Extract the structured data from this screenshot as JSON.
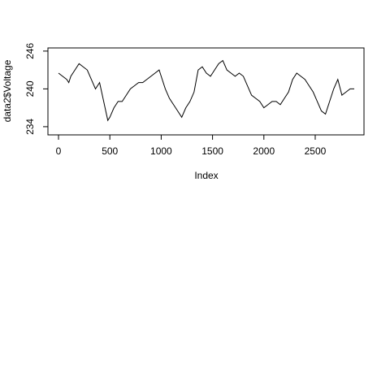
{
  "chart_data": {
    "type": "line",
    "x_label": "Index",
    "y_label": "data2$Voltage",
    "x": [
      0,
      40,
      80,
      100,
      120,
      160,
      200,
      240,
      280,
      320,
      360,
      400,
      440,
      480,
      500,
      540,
      580,
      620,
      660,
      700,
      740,
      780,
      820,
      860,
      900,
      940,
      980,
      1000,
      1040,
      1080,
      1120,
      1160,
      1200,
      1240,
      1280,
      1320,
      1360,
      1400,
      1440,
      1480,
      1520,
      1560,
      1600,
      1640,
      1680,
      1720,
      1760,
      1800,
      1840,
      1880,
      1920,
      1960,
      2000,
      2040,
      2080,
      2120,
      2160,
      2200,
      2240,
      2280,
      2320,
      2360,
      2400,
      2440,
      2480,
      2520,
      2560,
      2600,
      2640,
      2680,
      2720,
      2760,
      2800,
      2840,
      2880
    ],
    "series": [
      {
        "color": "#000000",
        "values": [
          242.5,
          242,
          241.5,
          241,
          242,
          243,
          244,
          243.5,
          243,
          241.5,
          240,
          241,
          238,
          235,
          235.5,
          237,
          238,
          238,
          239,
          240,
          240.5,
          241,
          241,
          241.5,
          242,
          242.5,
          243,
          242,
          240,
          238.5,
          237.5,
          236.5,
          235.5,
          237,
          238,
          239.5,
          243,
          243.5,
          242.5,
          242,
          243,
          244,
          244.5,
          243,
          242.5,
          242,
          242.5,
          242,
          240.5,
          239,
          238.5,
          238,
          237,
          237.5,
          238,
          238,
          237.5,
          238.5,
          239.5,
          241.5,
          242.5,
          242,
          241.5,
          240.5,
          239.5,
          238,
          236.5,
          236,
          238,
          240,
          241.5,
          239,
          239.5,
          240,
          240
        ]
      }
    ],
    "xlim": [
      -103,
      2975
    ],
    "ylim": [
      232.7,
      246.5
    ],
    "xticks": [
      0,
      500,
      1000,
      1500,
      2000,
      2500
    ],
    "yticks": [
      234,
      240,
      246
    ]
  }
}
